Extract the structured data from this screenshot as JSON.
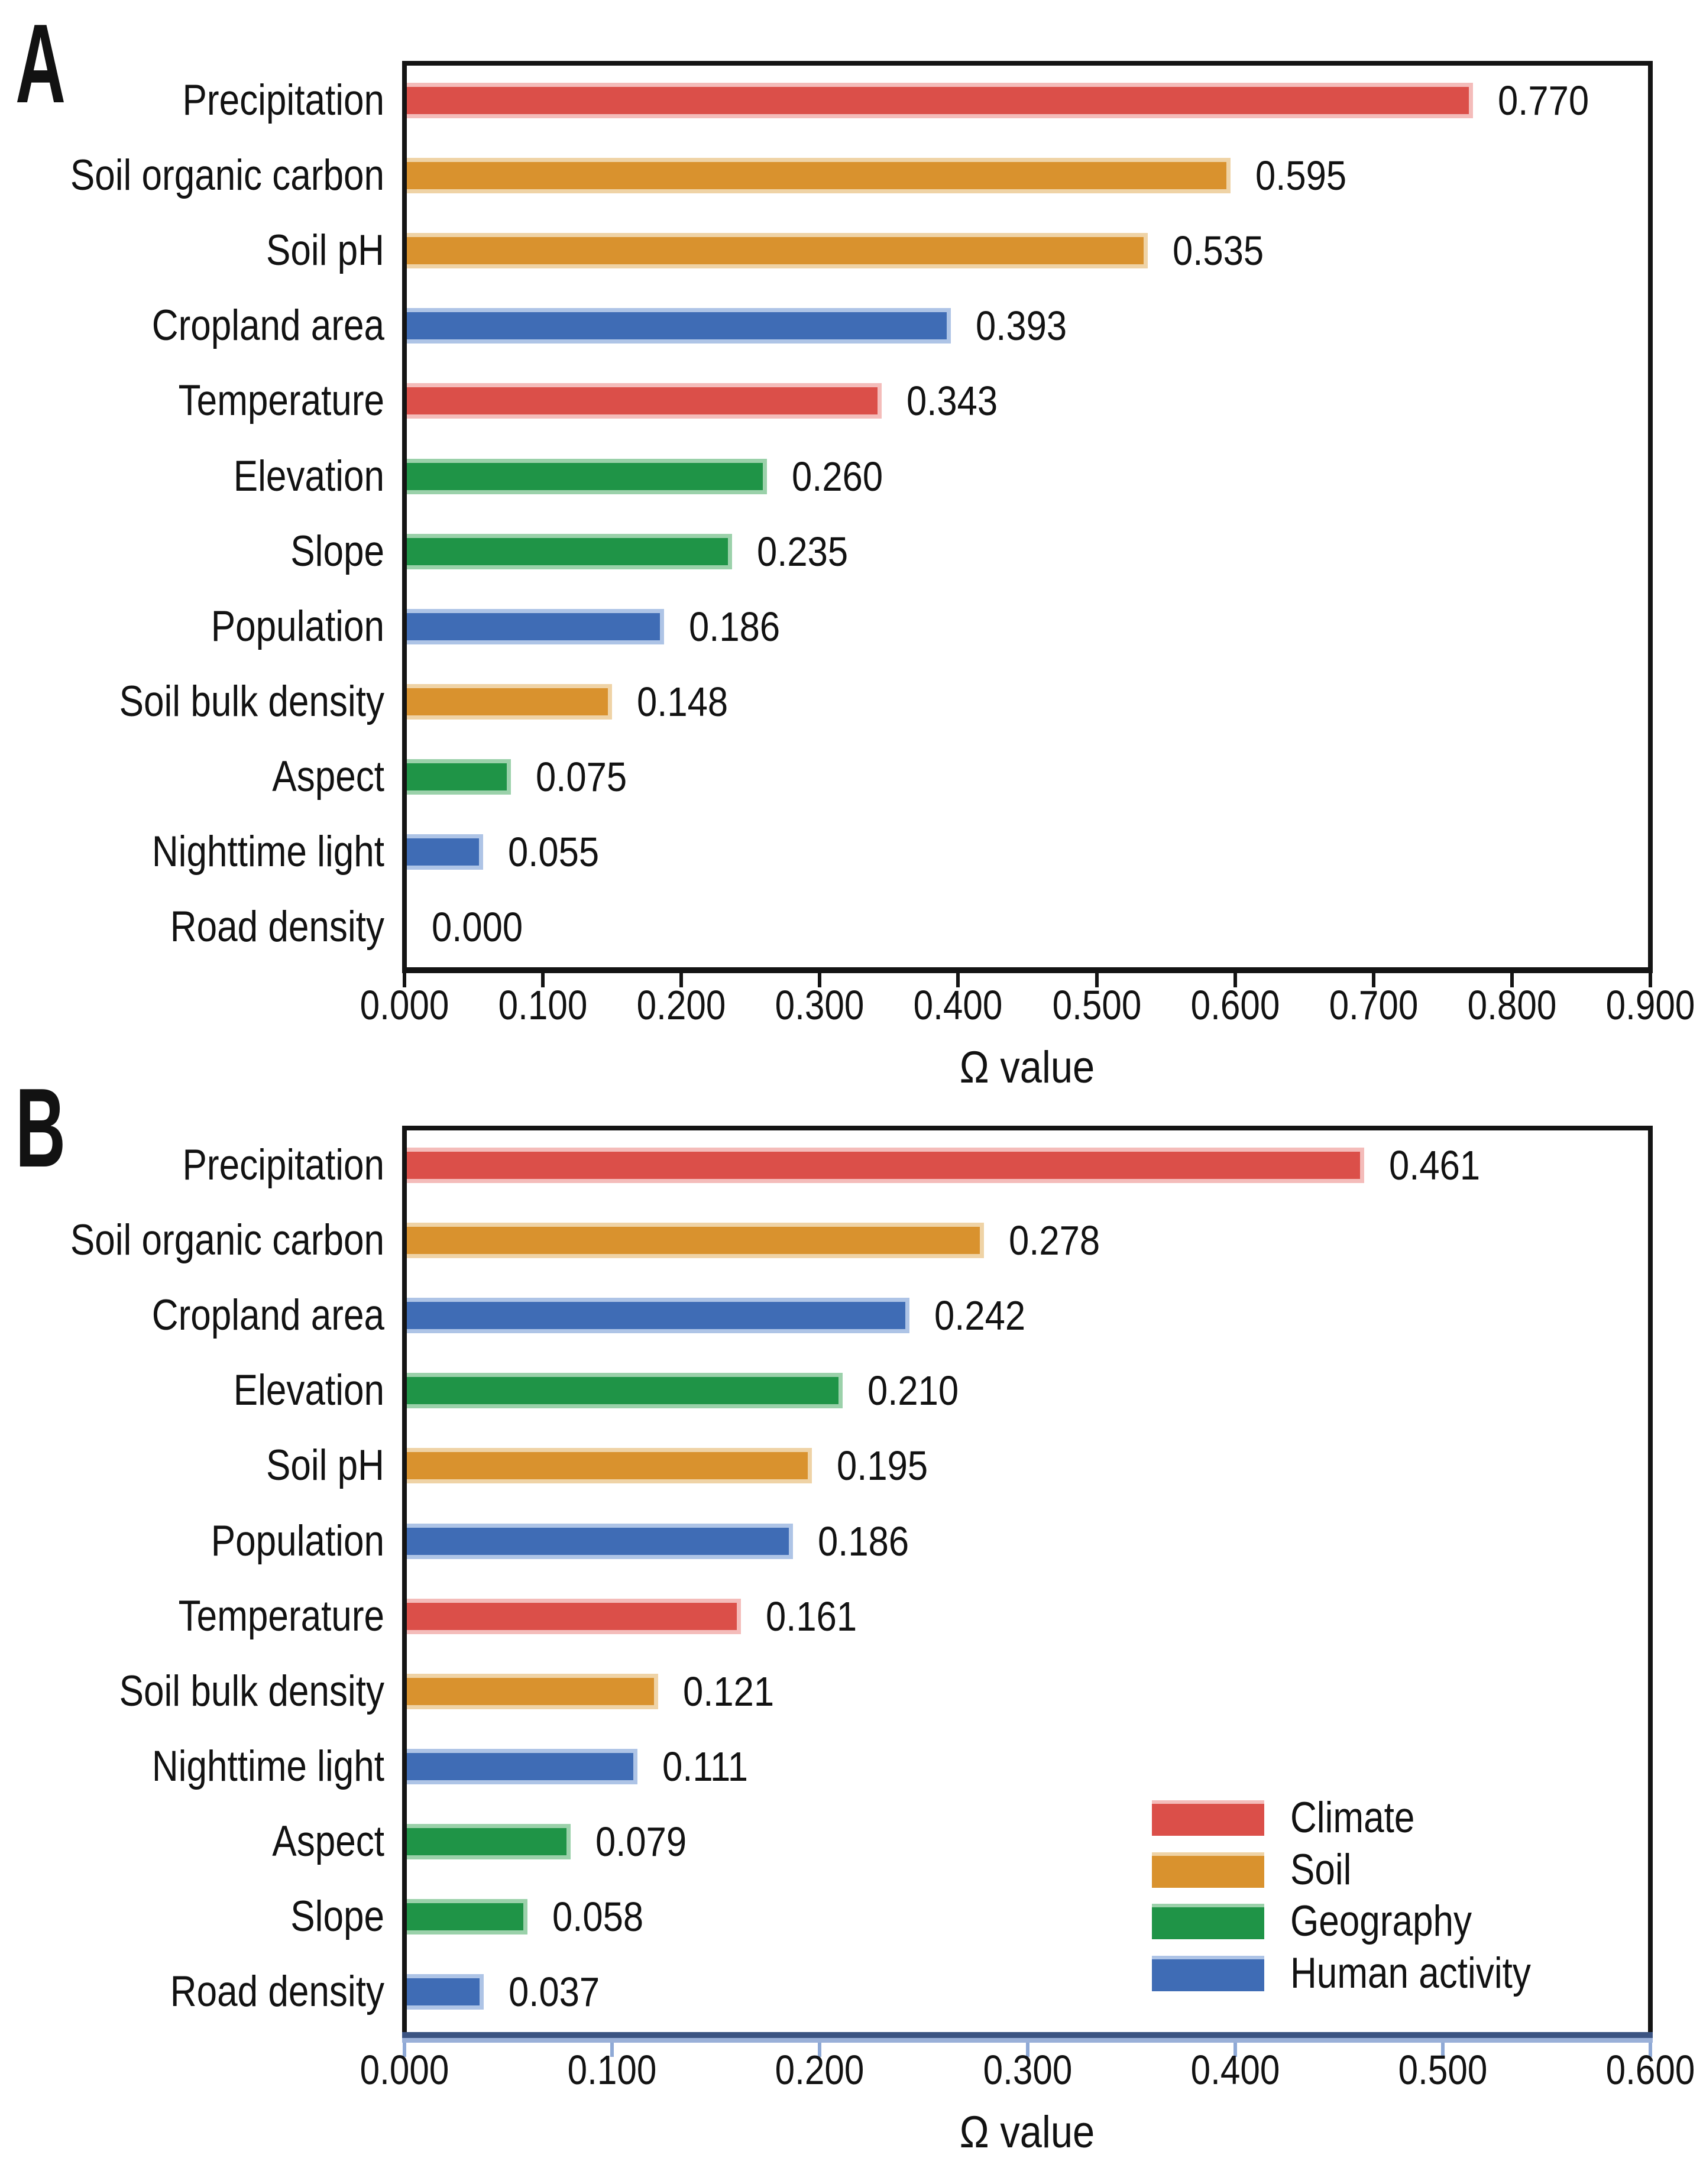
{
  "figure": {
    "background": "#ffffff",
    "text_color": "#121212"
  },
  "groups": {
    "Climate": {
      "fill": "#DB4F49",
      "edge": "#F4BCBA"
    },
    "Soil": {
      "fill": "#D9922E",
      "edge": "#EFD3A6"
    },
    "Geography": {
      "fill": "#1F9447",
      "edge": "#9BD1AA"
    },
    "Human activity": {
      "fill": "#3F6CB5",
      "edge": "#AEC4E6"
    }
  },
  "legend": {
    "entries": [
      "Climate",
      "Soil",
      "Geography",
      "Human activity"
    ],
    "position": "inside panel B, lower right"
  },
  "chart_data": [
    {
      "type": "bar",
      "orientation": "horizontal",
      "panel": "A",
      "title": "",
      "xlabel": "Ω value",
      "ylabel": "",
      "xlim": [
        0,
        0.9
      ],
      "grid": false,
      "xtick_labels": [
        "0.000",
        "0.100",
        "0.200",
        "0.300",
        "0.400",
        "0.500",
        "0.600",
        "0.700",
        "0.800",
        "0.900"
      ],
      "categories": [
        "Precipitation",
        "Soil organic carbon",
        "Soil pH",
        "Cropland area",
        "Temperature",
        "Elevation",
        "Slope",
        "Population",
        "Soil bulk density",
        "Aspect",
        "Nighttime light",
        "Road density"
      ],
      "values": [
        0.77,
        0.595,
        0.535,
        0.393,
        0.343,
        0.26,
        0.235,
        0.186,
        0.148,
        0.075,
        0.055,
        0.0
      ],
      "value_labels": [
        "0.770",
        "0.595",
        "0.535",
        "0.393",
        "0.343",
        "0.260",
        "0.235",
        "0.186",
        "0.148",
        "0.075",
        "0.055",
        "0.000"
      ],
      "bar_groups": [
        "Climate",
        "Soil",
        "Soil",
        "Human activity",
        "Climate",
        "Geography",
        "Geography",
        "Human activity",
        "Soil",
        "Geography",
        "Human activity",
        "Human activity"
      ],
      "axis_color": "#141414",
      "tick_color": "#141414",
      "legend_visible": false
    },
    {
      "type": "bar",
      "orientation": "horizontal",
      "panel": "B",
      "title": "",
      "xlabel": "Ω value",
      "ylabel": "",
      "xlim": [
        0,
        0.6
      ],
      "grid": false,
      "xtick_labels": [
        "0.000",
        "0.100",
        "0.200",
        "0.300",
        "0.400",
        "0.500",
        "0.600"
      ],
      "categories": [
        "Precipitation",
        "Soil organic carbon",
        "Cropland area",
        "Elevation",
        "Soil pH",
        "Population",
        "Temperature",
        "Soil bulk density",
        "Nighttime light",
        "Aspect",
        "Slope",
        "Road density"
      ],
      "values": [
        0.461,
        0.278,
        0.242,
        0.21,
        0.195,
        0.186,
        0.161,
        0.121,
        0.111,
        0.079,
        0.058,
        0.037
      ],
      "value_labels": [
        "0.461",
        "0.278",
        "0.242",
        "0.210",
        "0.195",
        "0.186",
        "0.161",
        "0.121",
        "0.111",
        "0.079",
        "0.058",
        "0.037"
      ],
      "bar_groups": [
        "Climate",
        "Soil",
        "Human activity",
        "Geography",
        "Soil",
        "Human activity",
        "Climate",
        "Soil",
        "Human activity",
        "Geography",
        "Geography",
        "Human activity"
      ],
      "axis_color": "#3C5482",
      "axis_color_light": "#9AB0D8",
      "tick_color": "#8FA9D6",
      "legend_visible": true
    }
  ]
}
